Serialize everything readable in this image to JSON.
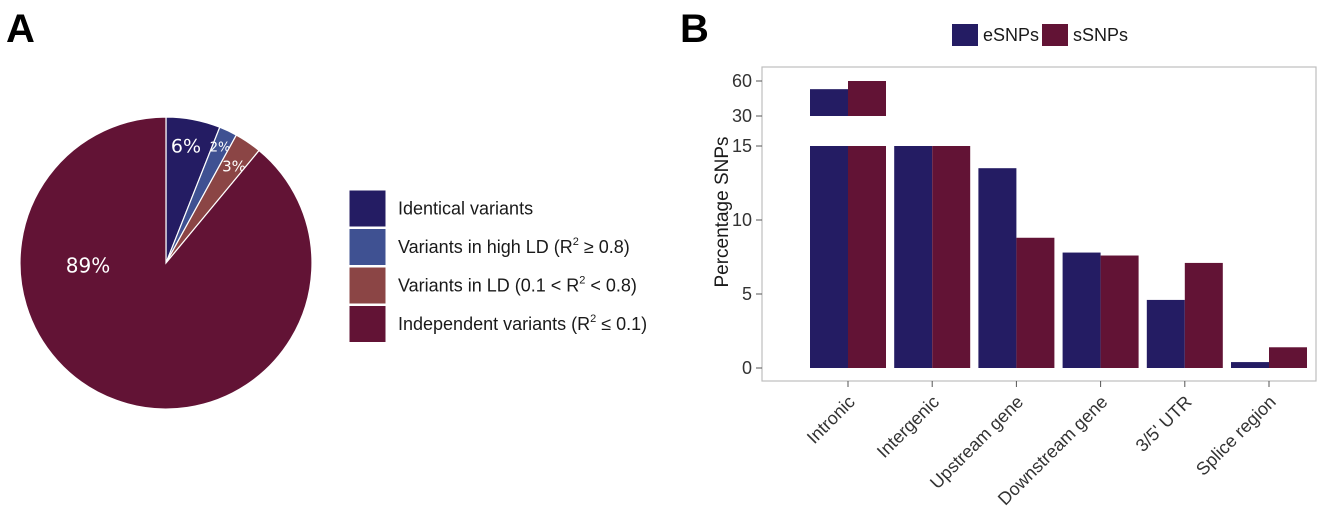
{
  "panels": {
    "a_letter": "A",
    "b_letter": "B"
  },
  "chart_data": [
    {
      "type": "pie",
      "slices": [
        {
          "label": "Identical variants",
          "value": 6,
          "display": "6%",
          "color": "#241c63"
        },
        {
          "label": "Variants in high LD (R² ≥ 0.8)",
          "value": 2,
          "display": "2%",
          "color": "#3f5192"
        },
        {
          "label": "Variants in LD (0.1 < R² < 0.8)",
          "value": 3,
          "display": "3%",
          "color": "#8b4545"
        },
        {
          "label": "Independent variants (R² ≤ 0.1)",
          "value": 89,
          "display": "89%",
          "color": "#621335"
        }
      ],
      "legend": {
        "placement": "right",
        "items": [
          {
            "pre": "Identical variants",
            "sup": "",
            "post": ""
          },
          {
            "pre": "Variants in high LD (R",
            "sup": "2",
            "post": " ≥ 0.8)"
          },
          {
            "pre": "Variants in LD (0.1 < R",
            "sup": "2",
            "post": " < 0.8)"
          },
          {
            "pre": "Independent variants (R",
            "sup": "2",
            "post": " ≤ 0.1)"
          }
        ]
      }
    },
    {
      "type": "bar",
      "categories": [
        "Intronic",
        "Intergenic",
        "Upstream gene",
        "Downstream gene",
        "3/5' UTR",
        "Splice region"
      ],
      "series": [
        {
          "name": "eSNPs",
          "color": "#241c63",
          "values": [
            53,
            15,
            13.5,
            7.8,
            4.6,
            0.4
          ]
        },
        {
          "name": "sSNPs",
          "color": "#621335",
          "values": [
            60,
            15,
            8.8,
            7.6,
            7.1,
            1.4
          ]
        }
      ],
      "ylabel": "Percentage SNPs",
      "xlabel": "",
      "yticks": [
        "0",
        "5",
        "10",
        "15",
        "30",
        "60"
      ],
      "broken_axis": {
        "lower_range": [
          0,
          15
        ],
        "upper_range": [
          30,
          60
        ]
      },
      "grid": false,
      "legend_position": "top"
    }
  ]
}
